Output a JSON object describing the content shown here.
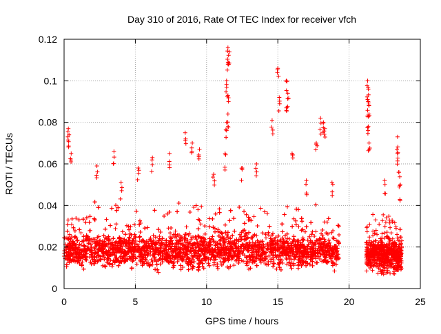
{
  "chart_data": {
    "type": "scatter",
    "title": "Day 310 of 2016, Rate Of TEC Index for receiver vfch",
    "xlabel": "GPS time / hours",
    "ylabel": "ROTI / TECUs",
    "xlim": [
      0,
      25
    ],
    "ylim": [
      0,
      0.12
    ],
    "x_ticks": [
      0,
      5,
      10,
      15,
      20,
      25
    ],
    "x_tick_labels": [
      "0",
      "5",
      "10",
      "15",
      "20",
      "25"
    ],
    "y_ticks": [
      0,
      0.02,
      0.04,
      0.06,
      0.08,
      0.1,
      0.12
    ],
    "y_tick_labels": [
      "0",
      "0.02",
      "0.04",
      "0.06",
      "0.08",
      "0.1",
      "0.12"
    ],
    "grid": true,
    "marker": "+",
    "color": "#ff0000",
    "series": [
      {
        "name": "ROTI",
        "dense_segments": [
          {
            "x_start": 0.0,
            "x_end": 19.3,
            "y_min": 0.005,
            "y_max": 0.045,
            "y_center": 0.018
          },
          {
            "x_start": 21.2,
            "x_end": 23.7,
            "y_min": 0.005,
            "y_max": 0.04,
            "y_center": 0.016
          }
        ],
        "notable_points": [
          {
            "x": 0.3,
            "y": 0.077
          },
          {
            "x": 0.35,
            "y": 0.074
          },
          {
            "x": 0.5,
            "y": 0.065
          },
          {
            "x": 2.3,
            "y": 0.059
          },
          {
            "x": 3.5,
            "y": 0.066
          },
          {
            "x": 4.0,
            "y": 0.051
          },
          {
            "x": 5.2,
            "y": 0.058
          },
          {
            "x": 6.2,
            "y": 0.063
          },
          {
            "x": 7.4,
            "y": 0.065
          },
          {
            "x": 8.5,
            "y": 0.075
          },
          {
            "x": 9.0,
            "y": 0.07
          },
          {
            "x": 9.5,
            "y": 0.067
          },
          {
            "x": 10.5,
            "y": 0.055
          },
          {
            "x": 11.3,
            "y": 0.065
          },
          {
            "x": 11.5,
            "y": 0.116
          },
          {
            "x": 11.6,
            "y": 0.114
          },
          {
            "x": 11.5,
            "y": 0.108
          },
          {
            "x": 11.4,
            "y": 0.1
          },
          {
            "x": 11.5,
            "y": 0.093
          },
          {
            "x": 11.5,
            "y": 0.084
          },
          {
            "x": 11.4,
            "y": 0.08
          },
          {
            "x": 12.5,
            "y": 0.058
          },
          {
            "x": 13.5,
            "y": 0.06
          },
          {
            "x": 14.6,
            "y": 0.081
          },
          {
            "x": 15.0,
            "y": 0.106
          },
          {
            "x": 15.1,
            "y": 0.092
          },
          {
            "x": 15.6,
            "y": 0.1
          },
          {
            "x": 15.7,
            "y": 0.094
          },
          {
            "x": 15.6,
            "y": 0.087
          },
          {
            "x": 16.0,
            "y": 0.065
          },
          {
            "x": 17.0,
            "y": 0.052
          },
          {
            "x": 17.7,
            "y": 0.07
          },
          {
            "x": 18.0,
            "y": 0.082
          },
          {
            "x": 18.2,
            "y": 0.08
          },
          {
            "x": 18.3,
            "y": 0.077
          },
          {
            "x": 18.8,
            "y": 0.051
          },
          {
            "x": 21.3,
            "y": 0.1
          },
          {
            "x": 21.35,
            "y": 0.096
          },
          {
            "x": 21.3,
            "y": 0.091
          },
          {
            "x": 21.4,
            "y": 0.088
          },
          {
            "x": 21.35,
            "y": 0.078
          },
          {
            "x": 21.4,
            "y": 0.07
          },
          {
            "x": 22.5,
            "y": 0.052
          },
          {
            "x": 23.4,
            "y": 0.073
          },
          {
            "x": 23.4,
            "y": 0.065
          },
          {
            "x": 23.5,
            "y": 0.056
          },
          {
            "x": 23.6,
            "y": 0.05
          }
        ]
      }
    ]
  }
}
